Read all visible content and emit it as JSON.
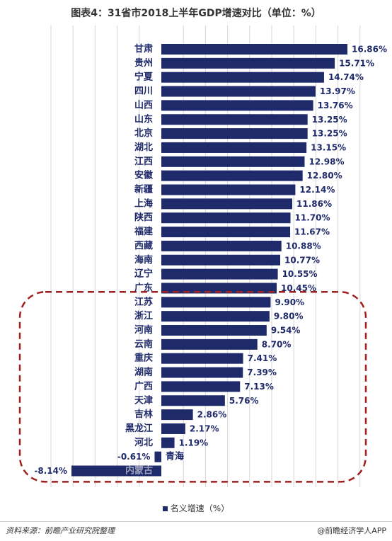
{
  "title": "图表4：31省市2018上半年GDP增速对比（单位：%）",
  "legend": {
    "label": "名义增速（%）"
  },
  "footer": {
    "source": "资料来源：前瞻产业研究院整理",
    "brand": "@前瞻经济学人APP"
  },
  "colors": {
    "bar": "#1f2a6b",
    "highlight": "#a01f1f",
    "grid": "#d6d6d6"
  },
  "chart_data": {
    "type": "bar",
    "orientation": "horizontal",
    "categories": [
      "甘肃",
      "贵州",
      "宁夏",
      "四川",
      "山西",
      "山东",
      "北京",
      "湖北",
      "江西",
      "安徽",
      "新疆",
      "上海",
      "陕西",
      "福建",
      "西藏",
      "海南",
      "辽宁",
      "广东",
      "江苏",
      "浙江",
      "河南",
      "云南",
      "重庆",
      "湖南",
      "广西",
      "天津",
      "吉林",
      "黑龙江",
      "河北",
      "青海",
      "内蒙古"
    ],
    "value_labels": [
      "16.86%",
      "15.71%",
      "14.74%",
      "13.97%",
      "13.76%",
      "13.25%",
      "13.25%",
      "13.15%",
      "12.98%",
      "12.80%",
      "12.14%",
      "11.86%",
      "11.70%",
      "11.67%",
      "10.88%",
      "10.77%",
      "10.55%",
      "10.45%",
      "9.90%",
      "9.80%",
      "9.54%",
      "8.70%",
      "7.41%",
      "7.39%",
      "7.13%",
      "5.76%",
      "2.86%",
      "2.17%",
      "1.19%",
      "-0.61%",
      "-8.14%"
    ],
    "series": [
      {
        "name": "名义增速（%）",
        "values": [
          16.86,
          15.71,
          14.74,
          13.97,
          13.76,
          13.25,
          13.25,
          13.15,
          12.98,
          12.8,
          12.14,
          11.86,
          11.7,
          11.67,
          10.88,
          10.77,
          10.55,
          10.45,
          9.9,
          9.8,
          9.54,
          8.7,
          7.41,
          7.39,
          7.13,
          5.76,
          2.86,
          2.17,
          1.19,
          -0.61,
          -8.14
        ]
      }
    ],
    "xlim": [
      -10,
      18
    ],
    "grid": true,
    "legend_position": "bottom",
    "highlight_range": [
      "江苏",
      "内蒙古"
    ]
  }
}
